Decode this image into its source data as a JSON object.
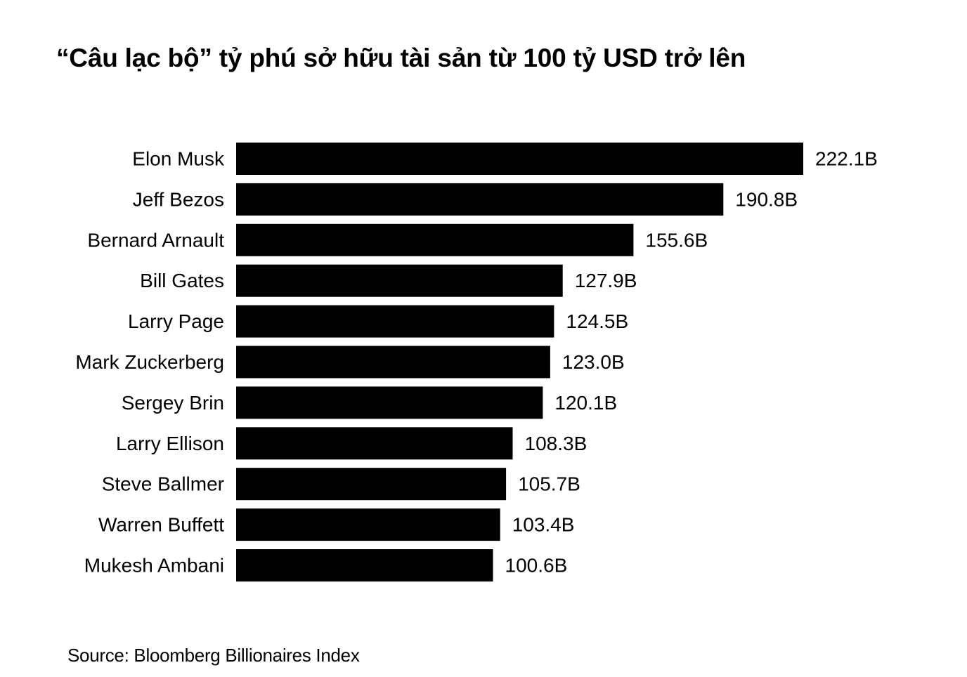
{
  "chart_data": {
    "type": "bar",
    "orientation": "horizontal",
    "title": "“Câu lạc bộ” tỷ phú sở hữu tài sản từ 100 tỷ USD trở lên",
    "categories": [
      "Elon Musk",
      "Jeff Bezos",
      "Bernard Arnault",
      "Bill Gates",
      "Larry Page",
      "Mark Zuckerberg",
      "Sergey Brin",
      "Larry Ellison",
      "Steve Ballmer",
      "Warren Buffett",
      "Mukesh Ambani"
    ],
    "values": [
      222.1,
      190.8,
      155.6,
      127.9,
      124.5,
      123.0,
      120.1,
      108.3,
      105.7,
      103.4,
      100.6
    ],
    "value_labels": [
      "222.1B",
      "190.8B",
      "155.6B",
      "127.9B",
      "124.5B",
      "123.0B",
      "120.1B",
      "108.3B",
      "105.7B",
      "103.4B",
      "100.6B"
    ],
    "xlim": [
      0,
      222.1
    ],
    "bar_color": "#000000",
    "grid": false,
    "legend": "none"
  },
  "source": "Source: Bloomberg Billionaires Index"
}
